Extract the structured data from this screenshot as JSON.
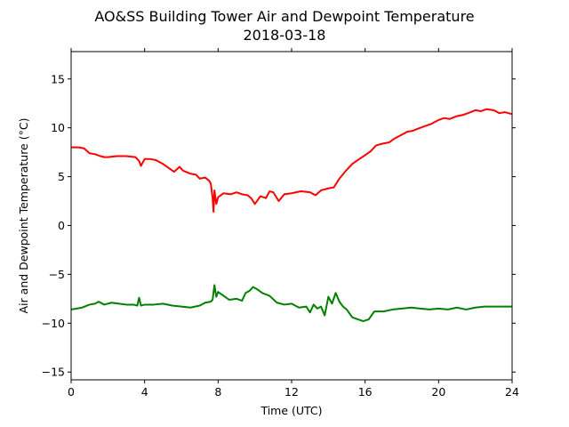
{
  "chart_data": {
    "type": "line",
    "title": "AO&SS Building Tower Air and Dewpoint Temperature",
    "subtitle": "2018-03-18",
    "xlabel": "Time (UTC)",
    "ylabel": "Air and Dewpoint Temperature (°C)",
    "xlim": [
      0,
      24
    ],
    "ylim": [
      -15.8,
      17.8
    ],
    "x_ticks": [
      0,
      4,
      8,
      12,
      16,
      20,
      24
    ],
    "y_ticks": [
      -15,
      -10,
      -5,
      0,
      5,
      10,
      15
    ],
    "grid": false,
    "series": [
      {
        "color": "#ff0000",
        "x": [
          0,
          0.4,
          0.7,
          1.0,
          1.3,
          1.6,
          1.8,
          2.0,
          2.5,
          3.0,
          3.5,
          3.7,
          3.8,
          4.0,
          4.3,
          4.6,
          5.0,
          5.3,
          5.6,
          5.9,
          6.1,
          6.5,
          6.8,
          7.0,
          7.3,
          7.5,
          7.6,
          7.7,
          7.75,
          7.8,
          7.9,
          8.0,
          8.3,
          8.7,
          9.0,
          9.3,
          9.6,
          9.8,
          10.0,
          10.3,
          10.6,
          10.8,
          11.0,
          11.3,
          11.6,
          12.0,
          12.5,
          13.0,
          13.3,
          13.6,
          14.0,
          14.3,
          14.6,
          15.0,
          15.3,
          15.6,
          16.0,
          16.3,
          16.6,
          17.0,
          17.3,
          17.6,
          18.0,
          18.3,
          18.6,
          19.0,
          19.3,
          19.6,
          20.0,
          20.3,
          20.6,
          21.0,
          21.3,
          21.6,
          22.0,
          22.3,
          22.6,
          23.0,
          23.3,
          23.6,
          24.0
        ],
        "y": [
          8.0,
          8.0,
          7.9,
          7.4,
          7.3,
          7.1,
          7.0,
          7.0,
          7.1,
          7.1,
          7.0,
          6.6,
          6.1,
          6.8,
          6.8,
          6.7,
          6.3,
          5.9,
          5.5,
          6.0,
          5.6,
          5.3,
          5.2,
          4.8,
          4.9,
          4.6,
          4.3,
          2.8,
          1.4,
          3.6,
          2.2,
          2.9,
          3.3,
          3.2,
          3.4,
          3.2,
          3.1,
          2.8,
          2.2,
          3.0,
          2.8,
          3.5,
          3.4,
          2.5,
          3.2,
          3.3,
          3.5,
          3.4,
          3.1,
          3.6,
          3.8,
          3.9,
          4.8,
          5.7,
          6.3,
          6.7,
          7.2,
          7.6,
          8.2,
          8.4,
          8.5,
          8.9,
          9.3,
          9.6,
          9.7,
          10.0,
          10.2,
          10.4,
          10.8,
          11.0,
          10.9,
          11.2,
          11.3,
          11.5,
          11.8,
          11.7,
          11.9,
          11.8,
          11.5,
          11.6,
          11.4
        ]
      },
      {
        "color": "#008000",
        "x": [
          0,
          0.3,
          0.6,
          1.0,
          1.3,
          1.5,
          1.8,
          2.2,
          2.6,
          3.0,
          3.4,
          3.6,
          3.7,
          3.8,
          4.0,
          4.5,
          5.0,
          5.5,
          6.0,
          6.5,
          7.0,
          7.3,
          7.6,
          7.7,
          7.8,
          7.9,
          8.0,
          8.3,
          8.6,
          9.0,
          9.3,
          9.5,
          9.7,
          9.9,
          10.1,
          10.4,
          10.8,
          11.2,
          11.6,
          12.0,
          12.4,
          12.8,
          13.0,
          13.2,
          13.4,
          13.6,
          13.8,
          14.0,
          14.2,
          14.4,
          14.6,
          14.8,
          15.0,
          15.3,
          15.6,
          15.9,
          16.2,
          16.5,
          17.0,
          17.5,
          18.0,
          18.5,
          19.0,
          19.5,
          20.0,
          20.5,
          21.0,
          21.5,
          22.0,
          22.5,
          23.0,
          23.5,
          24.0
        ],
        "y": [
          -8.6,
          -8.5,
          -8.4,
          -8.1,
          -8.0,
          -7.8,
          -8.1,
          -7.9,
          -8.0,
          -8.1,
          -8.1,
          -8.2,
          -7.4,
          -8.2,
          -8.1,
          -8.1,
          -8.0,
          -8.2,
          -8.3,
          -8.4,
          -8.2,
          -7.9,
          -7.8,
          -7.6,
          -6.1,
          -7.3,
          -6.8,
          -7.2,
          -7.6,
          -7.5,
          -7.7,
          -6.9,
          -6.7,
          -6.3,
          -6.5,
          -6.9,
          -7.2,
          -7.9,
          -8.1,
          -8.0,
          -8.4,
          -8.3,
          -8.9,
          -8.1,
          -8.5,
          -8.3,
          -9.2,
          -7.3,
          -8.0,
          -6.9,
          -7.8,
          -8.3,
          -8.6,
          -9.4,
          -9.6,
          -9.8,
          -9.6,
          -8.8,
          -8.8,
          -8.6,
          -8.5,
          -8.4,
          -8.5,
          -8.6,
          -8.5,
          -8.6,
          -8.4,
          -8.6,
          -8.4,
          -8.3,
          -8.3,
          -8.3,
          -8.3
        ]
      }
    ]
  }
}
